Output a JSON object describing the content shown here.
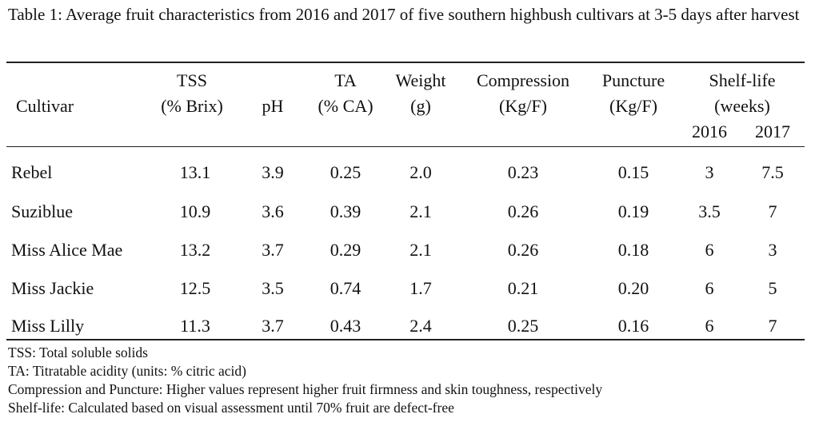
{
  "caption": "Table 1: Average fruit characteristics from 2016 and 2017 of five southern highbush cultivars at 3-5 days after harvest",
  "columns": [
    {
      "key": "cultivar",
      "line1": "",
      "line2": "Cultivar"
    },
    {
      "key": "tss",
      "line1": "TSS",
      "line2": "(% Brix)"
    },
    {
      "key": "ph",
      "line1": "",
      "line2": "pH"
    },
    {
      "key": "ta",
      "line1": "TA",
      "line2": "(% CA)"
    },
    {
      "key": "weight",
      "line1": "Weight",
      "line2": "(g)"
    },
    {
      "key": "compression",
      "line1": "Compression",
      "line2": "(Kg/F)"
    },
    {
      "key": "puncture",
      "line1": "Puncture",
      "line2": "(Kg/F)"
    }
  ],
  "shelf_life_header": {
    "line1": "Shelf-life",
    "line2": "(weeks)",
    "years": [
      "2016",
      "2017"
    ]
  },
  "rows": [
    {
      "cultivar": "Rebel",
      "tss": "13.1",
      "ph": "3.9",
      "ta": "0.25",
      "weight": "2.0",
      "compression": "0.23",
      "puncture": "0.15",
      "shelf_2016": "3",
      "shelf_2017": "7.5"
    },
    {
      "cultivar": "Suziblue",
      "tss": "10.9",
      "ph": "3.6",
      "ta": "0.39",
      "weight": "2.1",
      "compression": "0.26",
      "puncture": "0.19",
      "shelf_2016": "3.5",
      "shelf_2017": "7"
    },
    {
      "cultivar": "Miss Alice Mae",
      "tss": "13.2",
      "ph": "3.7",
      "ta": "0.29",
      "weight": "2.1",
      "compression": "0.26",
      "puncture": "0.18",
      "shelf_2016": "6",
      "shelf_2017": "3"
    },
    {
      "cultivar": "Miss Jackie",
      "tss": "12.5",
      "ph": "3.5",
      "ta": "0.74",
      "weight": "1.7",
      "compression": "0.21",
      "puncture": "0.20",
      "shelf_2016": "6",
      "shelf_2017": "5"
    },
    {
      "cultivar": "Miss Lilly",
      "tss": "11.3",
      "ph": "3.7",
      "ta": "0.43",
      "weight": "2.4",
      "compression": "0.25",
      "puncture": "0.16",
      "shelf_2016": "6",
      "shelf_2017": "7"
    }
  ],
  "notes": [
    "TSS: Total soluble solids",
    "TA: Titratable acidity (units: % citric acid)",
    "Compression and Puncture: Higher values represent higher fruit firmness and skin toughness, respectively",
    "Shelf-life: Calculated based on visual assessment until 70% fruit are defect-free"
  ]
}
